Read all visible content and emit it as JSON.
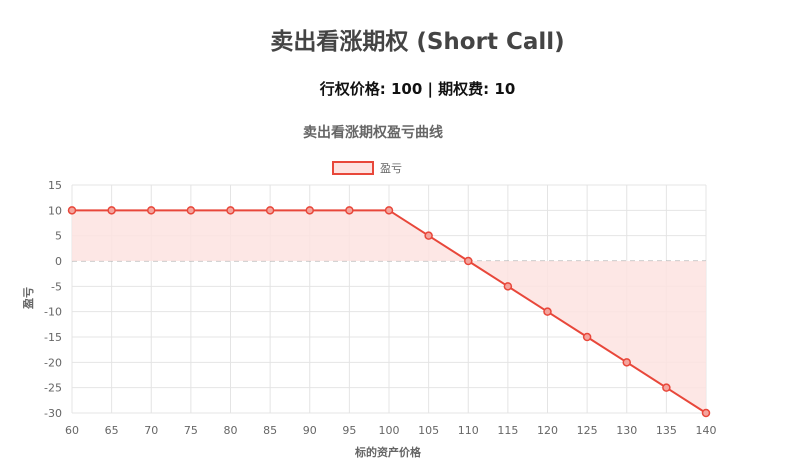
{
  "header": {
    "title": "卖出看涨期权 (Short Call)",
    "subtitle": "行权价格: 100 | 期权费: 10"
  },
  "chart_data": {
    "type": "line",
    "title": "卖出看涨期权盈亏曲线",
    "xlabel": "标的资产价格",
    "ylabel": "盈亏",
    "legend": {
      "position": "top",
      "entries": [
        "盈亏"
      ]
    },
    "x": [
      60,
      65,
      70,
      75,
      80,
      85,
      90,
      95,
      100,
      105,
      110,
      115,
      120,
      125,
      130,
      135,
      140
    ],
    "series": [
      {
        "name": "盈亏",
        "values": [
          10,
          10,
          10,
          10,
          10,
          10,
          10,
          10,
          10,
          5,
          0,
          -5,
          -10,
          -15,
          -20,
          -25,
          -30
        ],
        "color": "#e8473a",
        "fill": "#fde3e1"
      }
    ],
    "ylim": [
      -30,
      15
    ],
    "yticks": [
      15,
      10,
      5,
      0,
      -5,
      -10,
      -15,
      -20,
      -25,
      -30
    ],
    "grid": true,
    "zero_line": {
      "style": "dashed",
      "color": "#aaaaaa"
    }
  }
}
